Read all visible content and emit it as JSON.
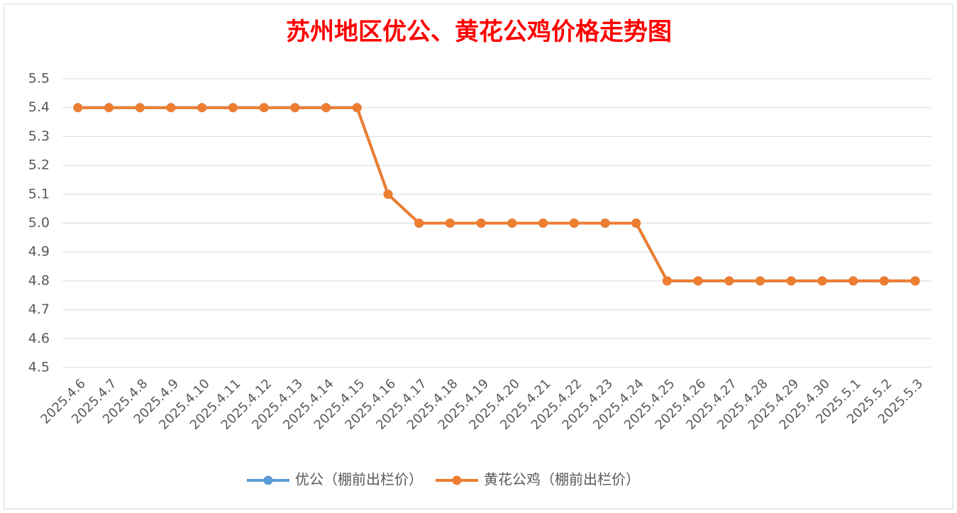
{
  "chart_data": {
    "type": "line",
    "title": "苏州地区优公、黄花公鸡价格走势图",
    "categories": [
      "2025.4.6",
      "2025.4.7",
      "2025.4.8",
      "2025.4.9",
      "2025.4.10",
      "2025.4.11",
      "2025.4.12",
      "2025.4.13",
      "2025.4.14",
      "2025.4.15",
      "2025.4.16",
      "2025.4.17",
      "2025.4.18",
      "2025.4.19",
      "2025.4.20",
      "2025.4.21",
      "2025.4.22",
      "2025.4.23",
      "2025.4.24",
      "2025.4.25",
      "2025.4.26",
      "2025.4.27",
      "2025.4.28",
      "2025.4.29",
      "2025.4.30",
      "2025.5.1",
      "2025.5.2",
      "2025.5.3"
    ],
    "series": [
      {
        "name": "优公（棚前出栏价）",
        "color": "#5b9bd5",
        "values": [
          5.4,
          5.4,
          5.4,
          5.4,
          5.4,
          5.4,
          5.4,
          5.4,
          5.4,
          5.4,
          5.1,
          5.0,
          5.0,
          5.0,
          5.0,
          5.0,
          5.0,
          5.0,
          5.0,
          4.8,
          4.8,
          4.8,
          4.8,
          4.8,
          4.8,
          4.8,
          4.8,
          4.8
        ]
      },
      {
        "name": "黄花公鸡（棚前出栏价）",
        "color": "#ed7d31",
        "values": [
          5.4,
          5.4,
          5.4,
          5.4,
          5.4,
          5.4,
          5.4,
          5.4,
          5.4,
          5.4,
          5.1,
          5.0,
          5.0,
          5.0,
          5.0,
          5.0,
          5.0,
          5.0,
          5.0,
          4.8,
          4.8,
          4.8,
          4.8,
          4.8,
          4.8,
          4.8,
          4.8,
          4.8
        ]
      }
    ],
    "ylim": [
      4.5,
      5.5
    ],
    "yticks": [
      4.5,
      4.6,
      4.7,
      4.8,
      4.9,
      {
        "value": 5,
        "label": "5.0"
      },
      5.1,
      5.2,
      5.3,
      5.4,
      5.5
    ],
    "grid": true,
    "legend": "bottom"
  }
}
